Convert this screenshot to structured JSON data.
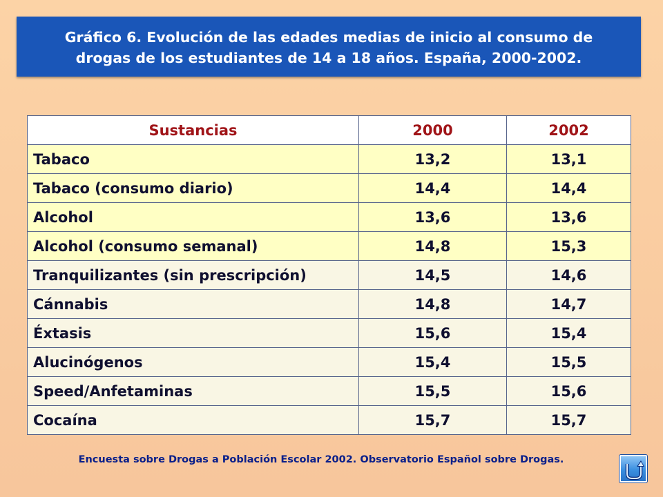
{
  "title": {
    "line1": "Gráfico 6. Evolución de las edades medias de inicio al consumo de",
    "line2": "drogas de los estudiantes de 14 a 18 años. España, 2000-2002."
  },
  "table": {
    "headers": [
      "Sustancias",
      "2000",
      "2002"
    ],
    "rows": [
      [
        "Tabaco",
        "13,2",
        "13,1"
      ],
      [
        "Tabaco (consumo diario)",
        "14,4",
        "14,4"
      ],
      [
        "Alcohol",
        "13,6",
        "13,6"
      ],
      [
        "Alcohol (consumo semanal)",
        "14,8",
        "15,3"
      ],
      [
        "Tranquilizantes (sin prescripción)",
        "14,5",
        "14,6"
      ],
      [
        "Cánnabis",
        "14,8",
        "14,7"
      ],
      [
        "Éxtasis",
        "15,6",
        "15,4"
      ],
      [
        "Alucinógenos",
        "15,4",
        "15,5"
      ],
      [
        "Speed/Anfetaminas",
        "15,5",
        "15,6"
      ],
      [
        "Cocaína",
        "15,7",
        "15,7"
      ]
    ]
  },
  "source": "Encuesta sobre Drogas a Población Escolar 2002. Observatorio Español sobre Drogas.",
  "nav_button": {
    "icon": "return-icon"
  },
  "colors": {
    "background": "#fcd3a6",
    "title_bg": "#1a56b8",
    "header_text": "#a01418",
    "row_yellow": "#ffffc4",
    "row_cream": "#f9f6e4",
    "source_text": "#0a1f8a"
  }
}
